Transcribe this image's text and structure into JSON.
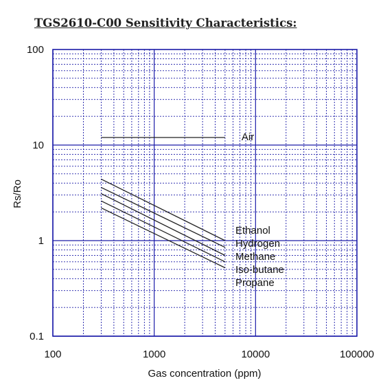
{
  "chart_data": {
    "type": "line",
    "title": "TGS2610-C00 Sensitivity Characteristics:",
    "xlabel": "Gas concentration (ppm)",
    "ylabel": "Rs/Ro",
    "xscale": "log",
    "yscale": "log",
    "xlim": [
      100,
      100000
    ],
    "ylim": [
      0.1,
      100
    ],
    "x_ticks": [
      "100",
      "1000",
      "10000",
      "100000"
    ],
    "y_ticks": [
      "0.1",
      "1",
      "10",
      "100"
    ],
    "grid": true,
    "grid_color": "#1a1aa8",
    "line_color": "#222222",
    "series": [
      {
        "name": "Air",
        "x": [
          300,
          5000
        ],
        "y": [
          12,
          12
        ]
      },
      {
        "name": "Ethanol",
        "x": [
          300,
          5000
        ],
        "y": [
          4.4,
          1.0
        ]
      },
      {
        "name": "Hydrogen",
        "x": [
          300,
          5000
        ],
        "y": [
          3.6,
          0.85
        ]
      },
      {
        "name": "Methane",
        "x": [
          300,
          5000
        ],
        "y": [
          3.1,
          0.7
        ]
      },
      {
        "name": "Iso-butane",
        "x": [
          300,
          5000
        ],
        "y": [
          2.6,
          0.6
        ]
      },
      {
        "name": "Propane",
        "x": [
          300,
          5000
        ],
        "y": [
          2.2,
          0.52
        ]
      }
    ]
  }
}
